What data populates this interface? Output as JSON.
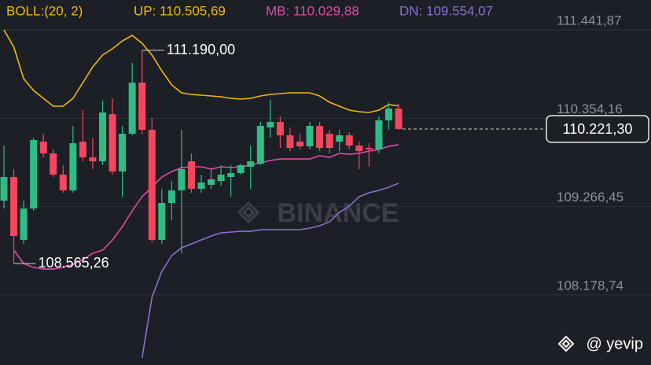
{
  "chart_data": {
    "type": "candlestick",
    "indicator": "BOLL:(20, 2)",
    "ylim": [
      107316,
      111810
    ],
    "yticks": [
      {
        "value": 111441.87,
        "label": "111.441,87"
      },
      {
        "value": 110354.16,
        "label": "110.354,16"
      },
      {
        "value": 109266.45,
        "label": "109.266,45"
      },
      {
        "value": 108178.74,
        "label": "108.178,74"
      }
    ],
    "grid": true,
    "up_color": "#2ebd85",
    "down_color": "#f6465d",
    "open": [
      109340,
      109631,
      108856,
      109243,
      110066,
      109921,
      109660,
      109466,
      110066,
      109873,
      109824,
      110405,
      109698,
      110163,
      110793,
      110212,
      108856,
      109311,
      109466,
      109824,
      109485,
      109534,
      109582,
      109631,
      109679,
      109757,
      109795,
      110241,
      110309,
      110144,
      110066,
      110008,
      110260,
      110163,
      110066,
      110144,
      110018,
      109989,
      109970,
      110328,
      110473
    ],
    "high": [
      110018,
      109728,
      109340,
      110115,
      110163,
      109970,
      109776,
      110260,
      110454,
      110115,
      110570,
      110599,
      110260,
      111035,
      111190,
      110357,
      109485,
      109582,
      110212,
      109921,
      109660,
      109728,
      109776,
      109776,
      109795,
      110018,
      110309,
      110580,
      110376,
      110241,
      110163,
      110309,
      110309,
      110212,
      110212,
      110183,
      110066,
      110047,
      110376,
      110551,
      110531
    ],
    "low": [
      109243,
      108565.26,
      108807,
      109214,
      109873,
      109631,
      109437,
      109437,
      109824,
      109728,
      109776,
      109660,
      109388,
      110144,
      110163,
      108827,
      108807,
      109098,
      108691,
      109437,
      109437,
      109485,
      109524,
      109388,
      109660,
      109485,
      109776,
      110115,
      109989,
      109950,
      109970,
      109970,
      109950,
      109921,
      109950,
      109970,
      109728,
      109757,
      109921,
      110212,
      110212
    ],
    "close": [
      109631,
      108904,
      109243,
      110086,
      109921,
      109660,
      109466,
      110047,
      109873,
      109824,
      110425,
      109698,
      110163,
      110793,
      110212,
      108856,
      109311,
      109466,
      109728,
      109485,
      109563,
      109602,
      109660,
      109679,
      109776,
      109824,
      110260,
      110309,
      110144,
      109989,
      110008,
      110260,
      109989,
      109989,
      110144,
      110018,
      109950,
      109970,
      110328,
      110473,
      110221.3
    ],
    "series": [
      {
        "name": "UP: 110.505,69",
        "color": "#f0b90b",
        "values": [
          111442,
          111229,
          110841,
          110696,
          110599,
          110502,
          110502,
          110599,
          110793,
          110987,
          111132,
          111210,
          111306,
          111374,
          111277,
          111132,
          110938,
          110764,
          110667,
          110648,
          110638,
          110628,
          110619,
          110599,
          110590,
          110599,
          110628,
          110648,
          110657,
          110667,
          110667,
          110667,
          110628,
          110551,
          110502,
          110454,
          110435,
          110425,
          110454,
          110522,
          110505.69
        ]
      },
      {
        "name": "MB: 110.029,88",
        "color": "#e04aa8",
        "values": [
          null,
          108730,
          108565,
          108517,
          108497,
          108497,
          108517,
          108555,
          108614,
          108691,
          108730,
          108856,
          109020,
          109214,
          109388,
          109505,
          109631,
          109698,
          109747,
          109757,
          109757,
          109728,
          109757,
          109747,
          109757,
          109776,
          109805,
          109834,
          109853,
          109853,
          109853,
          109853,
          109892,
          109873,
          109921,
          109911,
          109921,
          109950,
          109970,
          110008,
          110029.88
        ]
      },
      {
        "name": "DN: 109.554,07",
        "color": "#8b6fd6",
        "values": [
          null,
          null,
          null,
          null,
          null,
          null,
          null,
          null,
          null,
          null,
          null,
          null,
          null,
          null,
          107403,
          108149,
          108468,
          108662,
          108759,
          108807,
          108856,
          108904,
          108943,
          108953,
          108962,
          108962,
          108982,
          108982,
          108982,
          108982,
          108982,
          109001,
          109030,
          109079,
          109195,
          109272,
          109388,
          109437,
          109466,
          109505,
          109554.07
        ]
      }
    ],
    "annotations": [
      {
        "label": "111.190,00",
        "value": 111190
      },
      {
        "label": "108.565,26",
        "value": 108565.26
      }
    ],
    "last_price": {
      "label": "110.221,30",
      "value": 110221.3
    },
    "watermark": "BINANCE",
    "credit": "@ yevip"
  }
}
